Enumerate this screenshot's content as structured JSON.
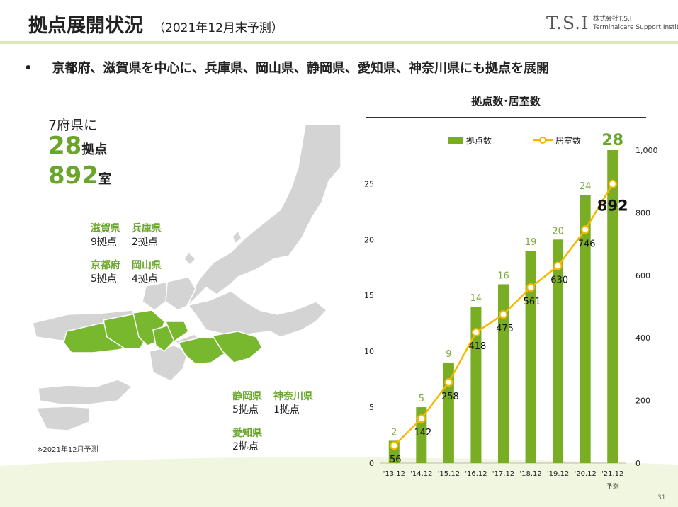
{
  "header": {
    "title": "拠点展開状況",
    "subtitle": "（2021年12月末予測）",
    "logo_mark": "T.S.I",
    "logo_company": "株式会社T.S.I",
    "logo_english": "Terminalcare Support Institute"
  },
  "bullet": "京都府、滋賀県を中心に、兵庫県、岡山県、静岡県、愛知県、神奈川県にも拠点を展開",
  "summary": {
    "lead": "7府県に",
    "bases_num": "28",
    "bases_unit": "拠点",
    "rooms_num": "892",
    "rooms_unit": "室"
  },
  "prefectures": [
    {
      "name": "滋賀県",
      "count": "9拠点"
    },
    {
      "name": "兵庫県",
      "count": "2拠点"
    },
    {
      "name": "京都府",
      "count": "5拠点"
    },
    {
      "name": "岡山県",
      "count": "4拠点"
    },
    {
      "name": "静岡県",
      "count": "5拠点"
    },
    {
      "name": "神奈川県",
      "count": "1拠点"
    },
    {
      "name": "愛知県",
      "count": "2拠点"
    }
  ],
  "note": "※2021年12月予測",
  "page_number": "31",
  "colors": {
    "accent": "#6aa62b",
    "bar": "#78ad24",
    "line": "#f5b800",
    "map_gray": "#d4d4d4",
    "map_green": "#78b82e"
  },
  "chart_data": {
    "type": "bar",
    "title": "拠点数･居室数",
    "categories": [
      "'13.12",
      "'14.12",
      "'15.12",
      "'16.12",
      "'17.12",
      "'18.12",
      "'19.12",
      "'20.12",
      "'21.12"
    ],
    "category_note": "予測",
    "series": [
      {
        "name": "拠点数",
        "type": "bar",
        "axis": "left",
        "values": [
          2,
          5,
          9,
          14,
          16,
          19,
          20,
          24,
          28
        ]
      },
      {
        "name": "居室数",
        "type": "line",
        "axis": "right",
        "values": [
          56,
          142,
          258,
          418,
          475,
          561,
          630,
          746,
          892
        ]
      }
    ],
    "y_left": {
      "min": 0,
      "max": 28,
      "ticks": [
        0,
        5,
        10,
        15,
        20,
        25
      ]
    },
    "y_right": {
      "min": 0,
      "max": 1000,
      "ticks": [
        0,
        200,
        400,
        600,
        800,
        1000
      ],
      "tick_labels": [
        "0",
        "200",
        "400",
        "600",
        "800",
        "1,000"
      ]
    },
    "legend_position": "top",
    "grid": false
  }
}
